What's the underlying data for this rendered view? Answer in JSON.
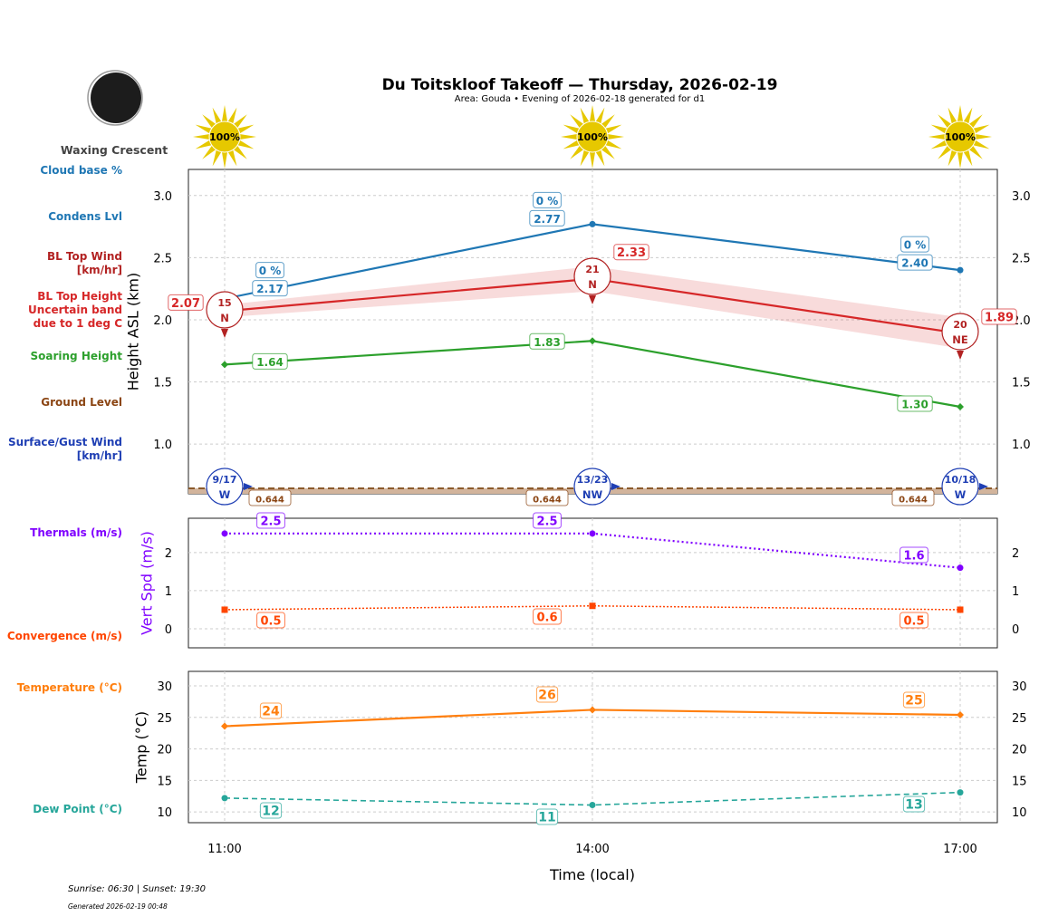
{
  "title": "Du Toitskloof Takeoff — Thursday, 2026-02-19",
  "subtitle": "Area: Gouda • Evening of 2026-02-18 generated for d1",
  "moon": {
    "phase": "Waxing Crescent"
  },
  "sun_icons": [
    "100%",
    "100%",
    "100%"
  ],
  "left_labels": [
    {
      "text": "Cloud base %",
      "color": "#1f77b4"
    },
    {
      "text": "Condens Lvl",
      "color": "#1f77b4"
    },
    {
      "text": "BL Top Wind\n[km/hr]",
      "color": "#b22222"
    },
    {
      "text": "BL Top Height\nUncertain band\ndue to 1 deg C",
      "color": "#d62728"
    },
    {
      "text": "Soaring Height",
      "color": "#2ca02c"
    },
    {
      "text": "Ground Level",
      "color": "#8b4513"
    },
    {
      "text": "Surface/Gust Wind\n[km/hr]",
      "color": "#1f3fb4"
    },
    {
      "text": "Thermals (m/s)",
      "color": "#8000ff"
    },
    {
      "text": "Convergence (m/s)",
      "color": "#ff4500"
    },
    {
      "text": "Temperature (°C)",
      "color": "#ff7f0e"
    },
    {
      "text": "Dew Point (°C)",
      "color": "#26a69a"
    }
  ],
  "footer": {
    "sun": "Sunrise: 06:30 | Sunset: 19:30",
    "generated": "Generated 2026-02-19 00:48"
  },
  "chart_data": [
    {
      "type": "line",
      "ylabel": "Height ASL (km)",
      "ylim": [
        0.6,
        3.21
      ],
      "yticks": [
        "1.0",
        "1.5",
        "2.0",
        "2.5",
        "3.0"
      ],
      "grid": true,
      "x": [
        "11:00",
        "14:00",
        "17:00"
      ],
      "series": [
        {
          "name": "Condens Lvl",
          "color": "#1f77b4",
          "values": [
            2.17,
            2.77,
            2.4
          ],
          "labels": [
            "2.17",
            "2.77",
            "2.40"
          ],
          "cloud_pct": [
            "0 %",
            "0 %",
            "0 %"
          ]
        },
        {
          "name": "BL Top Height",
          "color": "#d62728",
          "values": [
            2.07,
            2.33,
            1.89
          ],
          "labels": [
            "2.07",
            "2.33",
            "1.89"
          ],
          "band_low": [
            2.02,
            2.23,
            1.77
          ],
          "band_high": [
            2.12,
            2.43,
            2.02
          ]
        },
        {
          "name": "Soaring Height",
          "color": "#2ca02c",
          "values": [
            1.64,
            1.83,
            1.3
          ],
          "labels": [
            "1.64",
            "1.83",
            "1.30"
          ]
        },
        {
          "name": "Ground Level",
          "color": "#8b4513",
          "values": [
            0.644,
            0.644,
            0.644
          ],
          "labels": [
            "0.644",
            "0.644",
            "0.644"
          ]
        }
      ],
      "bl_wind": [
        {
          "speed": "15",
          "dir": "N"
        },
        {
          "speed": "21",
          "dir": "N"
        },
        {
          "speed": "20",
          "dir": "NE"
        }
      ],
      "surface_wind": [
        {
          "speed": "9/17",
          "dir": "W"
        },
        {
          "speed": "13/23",
          "dir": "NW"
        },
        {
          "speed": "10/18",
          "dir": "W"
        }
      ]
    },
    {
      "type": "line",
      "ylabel": "Vert Spd (m/s)",
      "ylim": [
        -0.5,
        2.9
      ],
      "yticks": [
        "0",
        "1",
        "2"
      ],
      "grid": true,
      "series": [
        {
          "name": "Thermals (m/s)",
          "color": "#8000ff",
          "values": [
            2.5,
            2.5,
            1.6
          ],
          "labels": [
            "2.5",
            "2.5",
            "1.6"
          ]
        },
        {
          "name": "Convergence (m/s)",
          "color": "#ff4500",
          "values": [
            0.5,
            0.6,
            0.5
          ],
          "labels": [
            "0.5",
            "0.6",
            "0.5"
          ]
        }
      ]
    },
    {
      "type": "line",
      "ylabel": "Temp (°C)",
      "xlabel": "Time (local)",
      "ylim": [
        8.3,
        32.3
      ],
      "yticks": [
        "10",
        "15",
        "20",
        "25",
        "30"
      ],
      "grid": true,
      "series": [
        {
          "name": "Temperature (°C)",
          "color": "#ff7f0e",
          "values": [
            23.6,
            26.2,
            25.4
          ],
          "labels": [
            "24",
            "26",
            "25"
          ]
        },
        {
          "name": "Dew Point (°C)",
          "color": "#26a69a",
          "values": [
            12.2,
            11.1,
            13.1
          ],
          "labels": [
            "12",
            "11",
            "13"
          ]
        }
      ]
    }
  ]
}
